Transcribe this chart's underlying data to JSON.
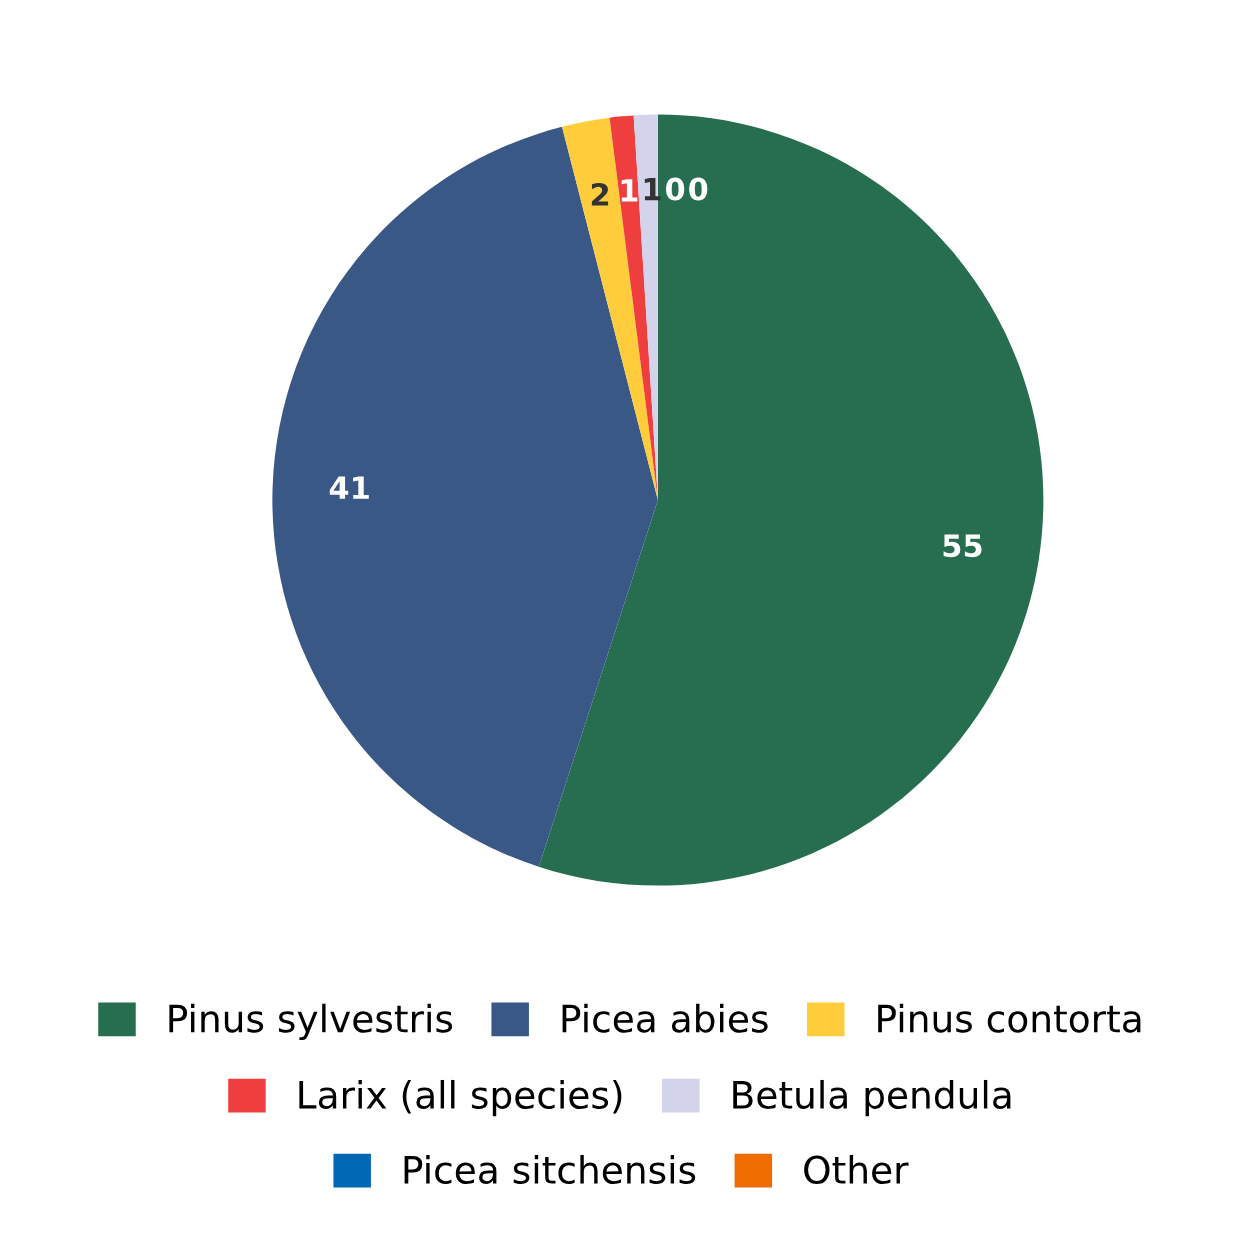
{
  "chart_data": {
    "type": "pie",
    "categories": [
      "Pinus sylvestris",
      "Picea abies",
      "Pinus contorta",
      "Larix (all species)",
      "Betula pendula",
      "Picea sitchensis",
      "Other"
    ],
    "values": [
      55,
      41,
      2,
      1,
      1,
      0,
      0
    ],
    "colors": [
      "#276e50",
      "#395885",
      "#ffcd3c",
      "#ee3e3e",
      "#d3d4ec",
      "#0068b4",
      "#ee6c00"
    ],
    "value_labels": [
      "55",
      "41",
      "2",
      "1",
      "1",
      "0",
      "0"
    ],
    "legend": "bottom"
  }
}
